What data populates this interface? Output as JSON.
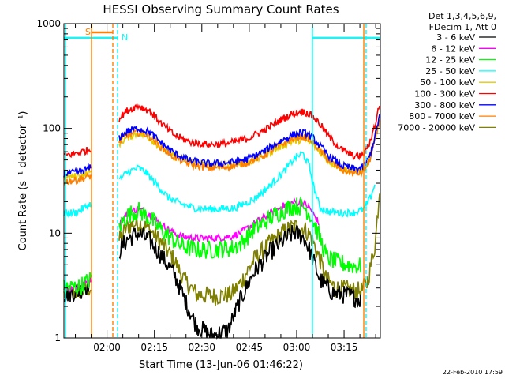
{
  "chart_data": {
    "type": "line",
    "title": "HESSI Observing Summary Count Rates",
    "xlabel": "Start Time (13-Jun-06 01:46:22)",
    "ylabel": "Count Rate (s⁻¹ detector⁻¹)",
    "yscale": "log",
    "ylim": [
      1,
      1000
    ],
    "xlim_minutes_after_start": [
      0,
      100.1
    ],
    "x_ticks": [
      {
        "label": "02:00",
        "minute": 13.63
      },
      {
        "label": "02:15",
        "minute": 28.63
      },
      {
        "label": "02:30",
        "minute": 43.63
      },
      {
        "label": "02:45",
        "minute": 58.63
      },
      {
        "label": "03:00",
        "minute": 73.63
      },
      {
        "label": "03:15",
        "minute": 88.63
      }
    ],
    "y_ticks": [
      {
        "label": "1",
        "value": 1
      },
      {
        "label": "10",
        "value": 10
      },
      {
        "label": "100",
        "value": 100
      },
      {
        "label": "1000",
        "value": 1000
      }
    ],
    "legend": {
      "placement": "right",
      "header": [
        "Det 1,3,4,5,6,9,",
        "FDecim 1, Att 0"
      ]
    },
    "timestamp": "22-Feb-2010 17:59",
    "flags": [
      {
        "label": "S",
        "color": "#ff7f00"
      },
      {
        "label": "N",
        "color": "#00ffff"
      }
    ],
    "series": [
      {
        "name": "3 - 6 keV",
        "color": "#000000",
        "anchors": [
          [
            0,
            2.6
          ],
          [
            5,
            2.8
          ],
          [
            8.4,
            3.4
          ],
          [
            17.5,
            6.8
          ],
          [
            20,
            8.7
          ],
          [
            23.5,
            10
          ],
          [
            27,
            8.6
          ],
          [
            31,
            6
          ],
          [
            35,
            4
          ],
          [
            38.5,
            2.2
          ],
          [
            42,
            1.3
          ],
          [
            47,
            1.05
          ],
          [
            52,
            1.2
          ],
          [
            55.5,
            2.2
          ],
          [
            60,
            4.2
          ],
          [
            65,
            6.5
          ],
          [
            70,
            8.8
          ],
          [
            73,
            10.2
          ],
          [
            76,
            9
          ],
          [
            78,
            6.6
          ],
          [
            81,
            3.6
          ],
          [
            85,
            2.7
          ],
          [
            91,
            2.5
          ],
          [
            94,
            2.3
          ]
        ],
        "gaps": [
          [
            8.5,
            17.3
          ],
          [
            94.5,
            100.1
          ]
        ]
      },
      {
        "name": "6 - 12 keV",
        "color": "#ff00ff",
        "anchors": [
          [
            0,
            3
          ],
          [
            5,
            3.1
          ],
          [
            8.4,
            3.6
          ],
          [
            17.5,
            12.2
          ],
          [
            20,
            15.5
          ],
          [
            23.5,
            17.2
          ],
          [
            27,
            15.2
          ],
          [
            31,
            12
          ],
          [
            35,
            10
          ],
          [
            38,
            9.2
          ],
          [
            43,
            8.9
          ],
          [
            48,
            9
          ],
          [
            53,
            9.3
          ],
          [
            56,
            10.1
          ],
          [
            60,
            12.3
          ],
          [
            65,
            15.2
          ],
          [
            70,
            18.6
          ],
          [
            73,
            19.8
          ],
          [
            76,
            19.2
          ],
          [
            78,
            17
          ],
          [
            81,
            12
          ],
          [
            83,
            8
          ],
          [
            85,
            6.5
          ],
          [
            88,
            6
          ],
          [
            91,
            5.5
          ],
          [
            94,
            5.2
          ]
        ],
        "gaps": [
          [
            8.5,
            17.3
          ],
          [
            80.8,
            100.1
          ]
        ]
      },
      {
        "name": "12 - 25 keV",
        "color": "#00ff00",
        "anchors": [
          [
            0,
            3
          ],
          [
            5,
            3.1
          ],
          [
            8.4,
            3.6
          ],
          [
            17.5,
            11.4
          ],
          [
            20,
            14.8
          ],
          [
            23.5,
            16.5
          ],
          [
            27,
            14
          ],
          [
            31,
            10.6
          ],
          [
            35,
            8.4
          ],
          [
            38,
            7.4
          ],
          [
            43,
            6.9
          ],
          [
            48,
            7
          ],
          [
            53,
            7.2
          ],
          [
            56,
            8
          ],
          [
            60,
            10.8
          ],
          [
            65,
            13.8
          ],
          [
            70,
            17
          ],
          [
            73,
            18.2
          ],
          [
            76,
            17.8
          ],
          [
            78,
            15
          ],
          [
            81,
            9
          ],
          [
            83,
            6
          ],
          [
            86,
            5.3
          ],
          [
            90,
            5
          ],
          [
            94,
            4.8
          ]
        ],
        "gaps": [
          [
            8.5,
            17.3
          ]
        ]
      },
      {
        "name": "25 - 50 keV",
        "color": "#00ffff",
        "anchors": [
          [
            0,
            15.5
          ],
          [
            4,
            15.8
          ],
          [
            8.4,
            19
          ],
          [
            17.5,
            32
          ],
          [
            20,
            38
          ],
          [
            23.5,
            42
          ],
          [
            26,
            38
          ],
          [
            29,
            30
          ],
          [
            33,
            22
          ],
          [
            37,
            19
          ],
          [
            42,
            17.2
          ],
          [
            48,
            17
          ],
          [
            54,
            17.4
          ],
          [
            60,
            21
          ],
          [
            65,
            28
          ],
          [
            70,
            40
          ],
          [
            73,
            52
          ],
          [
            75.5,
            58
          ],
          [
            77.5,
            45
          ],
          [
            79,
            28
          ],
          [
            81,
            17.5
          ],
          [
            84,
            16
          ],
          [
            88,
            15.6
          ],
          [
            92,
            15.8
          ],
          [
            95,
            17
          ],
          [
            97,
            22
          ],
          [
            98.5,
            30
          ]
        ],
        "gaps": [
          [
            8.5,
            17.3
          ],
          [
            98.9,
            100.1
          ]
        ]
      },
      {
        "name": "50 - 100 keV",
        "color": "#e6c800",
        "anchors": [
          [
            0,
            34
          ],
          [
            4,
            35
          ],
          [
            8.4,
            38
          ],
          [
            17.5,
            72
          ],
          [
            20,
            82
          ],
          [
            23.5,
            90
          ],
          [
            27,
            82
          ],
          [
            31,
            64
          ],
          [
            35,
            54
          ],
          [
            40,
            48
          ],
          [
            46,
            44.5
          ],
          [
            52,
            44.5
          ],
          [
            58,
            47
          ],
          [
            63,
            54
          ],
          [
            68,
            66
          ],
          [
            72,
            75
          ],
          [
            75,
            78
          ],
          [
            77,
            76
          ],
          [
            79,
            69
          ],
          [
            81,
            60
          ],
          [
            84,
            48
          ],
          [
            88,
            41
          ],
          [
            92,
            39
          ],
          [
            94.5,
            40
          ],
          [
            96.5,
            48
          ],
          [
            98.5,
            80
          ],
          [
            100,
            130
          ]
        ],
        "gaps": [
          [
            8.5,
            17.3
          ]
        ]
      },
      {
        "name": "100 - 300 keV",
        "color": "#ff0000",
        "anchors": [
          [
            0,
            55
          ],
          [
            4,
            58
          ],
          [
            8.4,
            63
          ],
          [
            17.5,
            125
          ],
          [
            20,
            148
          ],
          [
            23.5,
            165
          ],
          [
            27,
            148
          ],
          [
            31,
            110
          ],
          [
            35,
            86
          ],
          [
            40,
            74
          ],
          [
            46,
            70
          ],
          [
            52,
            72
          ],
          [
            58,
            80
          ],
          [
            63,
            95
          ],
          [
            68,
            118
          ],
          [
            72,
            137
          ],
          [
            75,
            145
          ],
          [
            77,
            141
          ],
          [
            79,
            128
          ],
          [
            81,
            110
          ],
          [
            84,
            82
          ],
          [
            88,
            62
          ],
          [
            92,
            54
          ],
          [
            94.5,
            55
          ],
          [
            96.5,
            70
          ],
          [
            98.5,
            110
          ],
          [
            100,
            180
          ]
        ],
        "gaps": [
          [
            8.5,
            17.3
          ]
        ]
      },
      {
        "name": "300 - 800 keV",
        "color": "#0000ff",
        "anchors": [
          [
            0,
            37
          ],
          [
            4,
            38
          ],
          [
            8.4,
            42
          ],
          [
            17.5,
            82
          ],
          [
            20,
            94
          ],
          [
            23.5,
            100
          ],
          [
            27,
            93
          ],
          [
            31,
            72
          ],
          [
            35,
            58
          ],
          [
            40,
            49
          ],
          [
            46,
            46
          ],
          [
            52,
            47
          ],
          [
            58,
            51
          ],
          [
            63,
            60
          ],
          [
            68,
            74
          ],
          [
            72,
            86
          ],
          [
            75,
            91
          ],
          [
            77,
            89
          ],
          [
            79,
            80
          ],
          [
            81,
            68
          ],
          [
            84,
            54
          ],
          [
            88,
            44
          ],
          [
            92,
            41
          ],
          [
            94.5,
            42
          ],
          [
            96.5,
            52
          ],
          [
            98.5,
            85
          ],
          [
            100,
            140
          ]
        ],
        "gaps": [
          [
            8.5,
            17.3
          ]
        ]
      },
      {
        "name": "800 - 7000 keV",
        "color": "#ff7f00",
        "anchors": [
          [
            0,
            31
          ],
          [
            4,
            32
          ],
          [
            8.4,
            35
          ],
          [
            17.5,
            74
          ],
          [
            20,
            86
          ],
          [
            23.5,
            92
          ],
          [
            27,
            85
          ],
          [
            31,
            65
          ],
          [
            35,
            53
          ],
          [
            40,
            45
          ],
          [
            46,
            42
          ],
          [
            52,
            43
          ],
          [
            58,
            47
          ],
          [
            63,
            55
          ],
          [
            68,
            68
          ],
          [
            72,
            79
          ],
          [
            75,
            84
          ],
          [
            77,
            82
          ],
          [
            79,
            73
          ],
          [
            81,
            62
          ],
          [
            84,
            49
          ],
          [
            88,
            40
          ],
          [
            92,
            37
          ],
          [
            94.5,
            38
          ],
          [
            96.5,
            47
          ],
          [
            98.5,
            78
          ],
          [
            100,
            125
          ]
        ],
        "gaps": [
          [
            8.5,
            17.3
          ]
        ]
      },
      {
        "name": "7000 - 20000 keV",
        "color": "#808000",
        "anchors": [
          [
            0,
            2.6
          ],
          [
            5,
            2.8
          ],
          [
            8.4,
            3
          ],
          [
            17.5,
            8.5
          ],
          [
            20,
            11.6
          ],
          [
            23.5,
            12.6
          ],
          [
            27,
            11
          ],
          [
            31,
            8
          ],
          [
            35,
            5.5
          ],
          [
            38,
            3.6
          ],
          [
            42,
            2.6
          ],
          [
            48,
            2.5
          ],
          [
            53,
            2.6
          ],
          [
            56,
            3.4
          ],
          [
            60,
            5.5
          ],
          [
            65,
            8
          ],
          [
            70,
            10.5
          ],
          [
            73,
            11.6
          ],
          [
            76,
            11
          ],
          [
            78,
            9.5
          ],
          [
            81,
            5.6
          ],
          [
            83,
            3.6
          ],
          [
            86,
            3
          ],
          [
            90,
            2.9
          ],
          [
            94,
            2.8
          ],
          [
            96,
            3.4
          ],
          [
            98.5,
            8
          ],
          [
            100,
            30
          ]
        ],
        "gaps": [
          [
            8.5,
            17.3
          ]
        ]
      }
    ]
  }
}
